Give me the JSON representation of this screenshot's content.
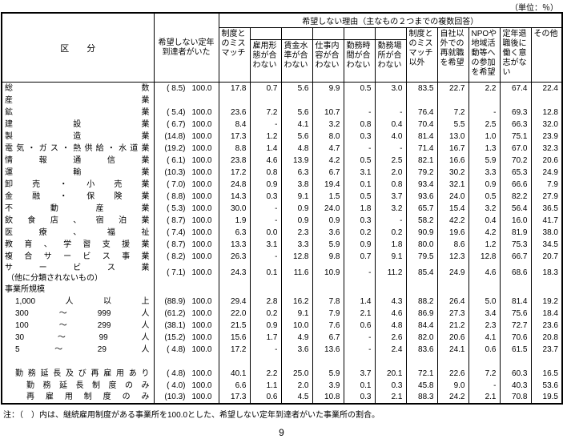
{
  "unit_note": "（単位：％）",
  "header": {
    "kubun": "区　　分",
    "had_label": "希望しない定年到達者がいた",
    "reasons_title": "希望しない理由（主なもの２つまでの複数回答）",
    "reason_cols": [
      {
        "label": "制度とのミスマッチ",
        "sub": false
      },
      {
        "label": "雇用形態が合わない",
        "sub": true
      },
      {
        "label": "賃金水準が合わない",
        "sub": true
      },
      {
        "label": "仕事内容が合わない",
        "sub": true
      },
      {
        "label": "勤務時間が合わない",
        "sub": true
      },
      {
        "label": "勤務場所が合わない",
        "sub": true
      },
      {
        "label": "制度とのミスマッチ以外",
        "sub": false
      },
      {
        "label": "自社以外での再就職を希望",
        "sub": false
      },
      {
        "label": "NPOや地域活動等への参加を希望",
        "sub": false
      },
      {
        "label": "定年退職後に働く意志がない",
        "sub": false
      },
      {
        "label": "その他",
        "sub": false
      }
    ]
  },
  "rows": [
    {
      "type": "data",
      "label": "総数",
      "indent": 0,
      "paren": "( 8.5)",
      "total": "100.0",
      "values": [
        "17.8",
        "0.7",
        "5.6",
        "9.9",
        "0.5",
        "3.0",
        "83.5",
        "22.7",
        "2.2",
        "67.4",
        "22.4"
      ]
    },
    {
      "type": "section",
      "label": "産業",
      "justify": true
    },
    {
      "type": "data",
      "label": "鉱業",
      "indent": 0,
      "paren": "( 5.4)",
      "total": "100.0",
      "values": [
        "23.6",
        "7.2",
        "5.6",
        "10.7",
        "-",
        "-",
        "76.4",
        "7.2",
        "-",
        "69.3",
        "12.8"
      ]
    },
    {
      "type": "data",
      "label": "建設業",
      "indent": 0,
      "paren": "( 6.7)",
      "total": "100.0",
      "values": [
        "8.4",
        "-",
        "4.1",
        "3.2",
        "0.8",
        "0.4",
        "70.4",
        "5.5",
        "2.5",
        "66.3",
        "32.0"
      ]
    },
    {
      "type": "data",
      "label": "製造業",
      "indent": 0,
      "paren": "(14.8)",
      "total": "100.0",
      "values": [
        "17.3",
        "1.2",
        "5.6",
        "8.0",
        "0.3",
        "4.0",
        "81.4",
        "13.0",
        "1.0",
        "75.1",
        "23.9"
      ]
    },
    {
      "type": "data",
      "label": "電気・ガス・熱供給・水道業",
      "indent": 0,
      "paren": "(19.2)",
      "total": "100.0",
      "values": [
        "8.8",
        "1.4",
        "4.8",
        "4.7",
        "-",
        "-",
        "71.4",
        "16.7",
        "1.3",
        "67.0",
        "32.3"
      ]
    },
    {
      "type": "data",
      "label": "情報通信業",
      "indent": 0,
      "paren": "( 6.1)",
      "total": "100.0",
      "values": [
        "23.8",
        "4.6",
        "13.9",
        "4.2",
        "0.5",
        "2.5",
        "82.1",
        "16.6",
        "5.9",
        "70.2",
        "20.6"
      ]
    },
    {
      "type": "data",
      "label": "運輸業",
      "indent": 0,
      "paren": "(10.3)",
      "total": "100.0",
      "values": [
        "17.2",
        "0.8",
        "6.3",
        "6.7",
        "3.1",
        "2.0",
        "79.2",
        "30.2",
        "3.3",
        "65.3",
        "24.9"
      ]
    },
    {
      "type": "data",
      "label": "卸売・小売業",
      "indent": 0,
      "paren": "( 7.0)",
      "total": "100.0",
      "values": [
        "24.8",
        "0.9",
        "3.8",
        "19.4",
        "0.1",
        "0.8",
        "93.4",
        "32.1",
        "0.9",
        "66.6",
        "7.9"
      ]
    },
    {
      "type": "data",
      "label": "金融・保険業",
      "indent": 0,
      "paren": "( 8.8)",
      "total": "100.0",
      "values": [
        "14.3",
        "0.3",
        "9.1",
        "1.5",
        "0.5",
        "3.7",
        "93.6",
        "24.0",
        "0.5",
        "82.2",
        "27.9"
      ]
    },
    {
      "type": "data",
      "label": "不動産業",
      "indent": 0,
      "paren": "( 5.3)",
      "total": "100.0",
      "values": [
        "30.0",
        "-",
        "0.9",
        "24.0",
        "1.8",
        "3.2",
        "65.7",
        "15.4",
        "3.2",
        "56.4",
        "36.5"
      ]
    },
    {
      "type": "data",
      "label": "飲食店、宿泊業",
      "indent": 0,
      "paren": "( 8.7)",
      "total": "100.0",
      "values": [
        "1.9",
        "-",
        "0.9",
        "0.9",
        "0.3",
        "-",
        "58.2",
        "42.2",
        "0.4",
        "16.0",
        "41.7"
      ]
    },
    {
      "type": "data",
      "label": "医療、福祉",
      "indent": 0,
      "paren": "( 7.4)",
      "total": "100.0",
      "values": [
        "6.3",
        "0.0",
        "2.3",
        "3.6",
        "0.2",
        "0.2",
        "90.9",
        "19.6",
        "4.2",
        "81.9",
        "38.0"
      ]
    },
    {
      "type": "data",
      "label": "教育、学習支援業",
      "indent": 0,
      "paren": "( 8.7)",
      "total": "100.0",
      "values": [
        "13.3",
        "3.1",
        "3.3",
        "5.9",
        "0.9",
        "1.8",
        "80.0",
        "8.6",
        "1.2",
        "75.3",
        "34.5"
      ]
    },
    {
      "type": "data",
      "label": "複合サービス事業",
      "indent": 0,
      "paren": "( 8.2)",
      "total": "100.0",
      "values": [
        "26.3",
        "-",
        "12.8",
        "9.8",
        "0.7",
        "9.1",
        "79.5",
        "12.3",
        "12.8",
        "66.7",
        "20.7"
      ]
    },
    {
      "type": "data",
      "label": "サービス業",
      "label2": "（他に分類されないもの）",
      "indent": 0,
      "paren": "( 7.1)",
      "total": "100.0",
      "values": [
        "24.3",
        "0.1",
        "11.6",
        "10.9",
        "-",
        "11.2",
        "85.4",
        "24.9",
        "4.6",
        "68.6",
        "18.3"
      ]
    },
    {
      "type": "section",
      "label": "事業所規模",
      "justify": false
    },
    {
      "type": "data",
      "label": "1,000人以上",
      "indent": 1,
      "paren": "(88.9)",
      "total": "100.0",
      "values": [
        "29.4",
        "2.8",
        "16.2",
        "7.8",
        "1.4",
        "4.3",
        "88.2",
        "26.4",
        "5.0",
        "81.4",
        "19.2"
      ]
    },
    {
      "type": "data",
      "label": "300～999人",
      "indent": 1,
      "paren": "(61.2)",
      "total": "100.0",
      "values": [
        "22.0",
        "0.2",
        "9.1",
        "7.9",
        "2.1",
        "4.6",
        "86.9",
        "27.3",
        "3.4",
        "75.6",
        "18.4"
      ]
    },
    {
      "type": "data",
      "label": "100～299人",
      "indent": 1,
      "paren": "(38.1)",
      "total": "100.0",
      "values": [
        "21.5",
        "0.9",
        "10.0",
        "7.6",
        "0.6",
        "4.8",
        "84.4",
        "21.2",
        "2.3",
        "72.7",
        "23.6"
      ]
    },
    {
      "type": "data",
      "label": "30～99人",
      "indent": 1,
      "paren": "(15.2)",
      "total": "100.0",
      "values": [
        "15.6",
        "1.7",
        "4.9",
        "6.7",
        "-",
        "2.6",
        "82.0",
        "20.6",
        "4.1",
        "70.6",
        "20.8"
      ]
    },
    {
      "type": "data",
      "label": "5～29人",
      "indent": 1,
      "paren": "( 4.8)",
      "total": "100.0",
      "values": [
        "17.2",
        "-",
        "3.6",
        "13.6",
        "-",
        "2.4",
        "83.6",
        "24.1",
        "0.6",
        "61.5",
        "23.7"
      ]
    },
    {
      "type": "blank"
    },
    {
      "type": "data",
      "label": "勤務延長及び再雇用あり",
      "indent": 1,
      "paren": "( 4.8)",
      "total": "100.0",
      "values": [
        "40.1",
        "2.2",
        "25.0",
        "5.9",
        "3.7",
        "20.1",
        "72.1",
        "22.6",
        "7.2",
        "60.3",
        "16.5"
      ]
    },
    {
      "type": "data",
      "label": "勤務延長制度のみ",
      "indent": 2,
      "paren": "( 4.0)",
      "total": "100.0",
      "values": [
        "6.6",
        "1.1",
        "2.0",
        "3.9",
        "0.1",
        "0.3",
        "45.8",
        "9.0",
        "-",
        "40.3",
        "53.6"
      ]
    },
    {
      "type": "data",
      "label": "再雇用制度のみ",
      "indent": 2,
      "paren": "(10.3)",
      "total": "100.0",
      "values": [
        "17.3",
        "0.6",
        "4.5",
        "10.8",
        "0.3",
        "2.1",
        "88.3",
        "24.2",
        "2.1",
        "70.8",
        "19.5"
      ]
    }
  ],
  "footnote": "注：（　）内は、継続雇用制度がある事業所を100.0とした、希望しない定年到達者がいた事業所の割合。",
  "page_number": "9"
}
